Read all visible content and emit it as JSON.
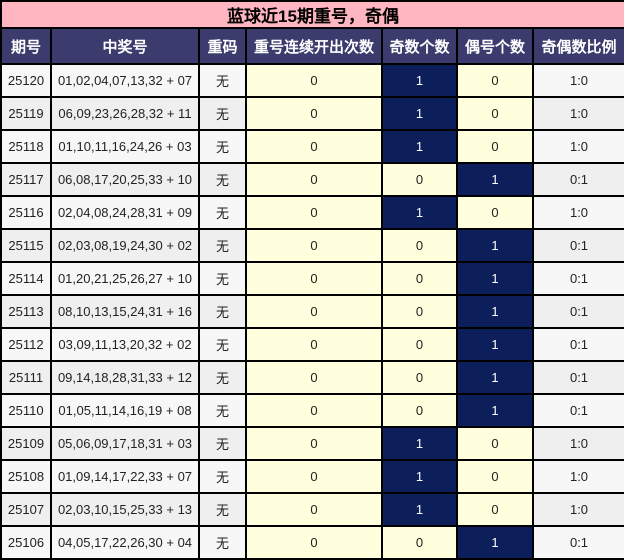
{
  "title": "蓝球近15期重号，奇偶",
  "headers": [
    "期号",
    "中奖号",
    "重码",
    "重号连续开出次数",
    "奇数个数",
    "偶号个数",
    "奇偶数比例"
  ],
  "colors": {
    "title_bg": "#ffb6c1",
    "header_bg": "#3b3b6d",
    "highlight": "#0d1f5a",
    "cell_yellow": "#ffffdd"
  },
  "rows": [
    [
      "25120",
      "01,02,04,07,13,32 + 07",
      "无",
      "0",
      "1",
      "0",
      "1:0"
    ],
    [
      "25119",
      "06,09,23,26,28,32 + 11",
      "无",
      "0",
      "1",
      "0",
      "1:0"
    ],
    [
      "25118",
      "01,10,11,16,24,26 + 03",
      "无",
      "0",
      "1",
      "0",
      "1:0"
    ],
    [
      "25117",
      "06,08,17,20,25,33 + 10",
      "无",
      "0",
      "0",
      "1",
      "0:1"
    ],
    [
      "25116",
      "02,04,08,24,28,31 + 09",
      "无",
      "0",
      "1",
      "0",
      "1:0"
    ],
    [
      "25115",
      "02,03,08,19,24,30 + 02",
      "无",
      "0",
      "0",
      "1",
      "0:1"
    ],
    [
      "25114",
      "01,20,21,25,26,27 + 10",
      "无",
      "0",
      "0",
      "1",
      "0:1"
    ],
    [
      "25113",
      "08,10,13,15,24,31 + 16",
      "无",
      "0",
      "0",
      "1",
      "0:1"
    ],
    [
      "25112",
      "03,09,11,13,20,32 + 02",
      "无",
      "0",
      "0",
      "1",
      "0:1"
    ],
    [
      "25111",
      "09,14,18,28,31,33 + 12",
      "无",
      "0",
      "0",
      "1",
      "0:1"
    ],
    [
      "25110",
      "01,05,11,14,16,19 + 08",
      "无",
      "0",
      "0",
      "1",
      "0:1"
    ],
    [
      "25109",
      "05,06,09,17,18,31 + 03",
      "无",
      "0",
      "1",
      "0",
      "1:0"
    ],
    [
      "25108",
      "01,09,14,17,22,33 + 07",
      "无",
      "0",
      "1",
      "0",
      "1:0"
    ],
    [
      "25107",
      "02,03,10,15,25,33 + 13",
      "无",
      "0",
      "1",
      "0",
      "1:0"
    ],
    [
      "25106",
      "04,05,17,22,26,30 + 04",
      "无",
      "0",
      "0",
      "1",
      "0:1"
    ]
  ]
}
